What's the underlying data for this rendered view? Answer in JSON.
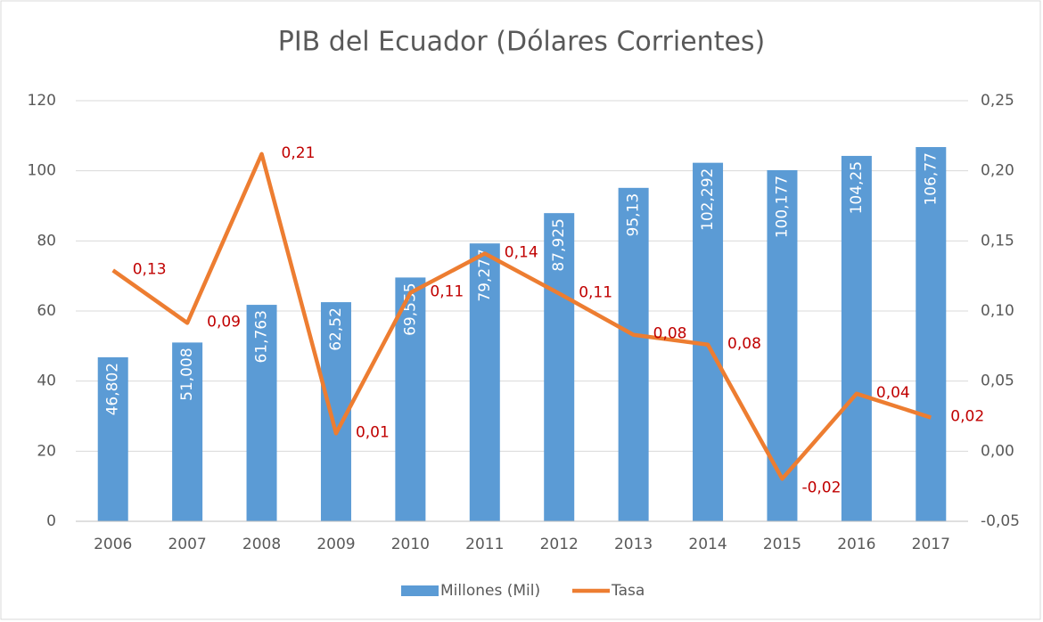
{
  "chart_data": {
    "type": "bar-line",
    "title": "PIB del Ecuador (Dólares Corrientes)",
    "categories": [
      "2006",
      "2007",
      "2008",
      "2009",
      "2010",
      "2011",
      "2012",
      "2013",
      "2014",
      "2015",
      "2016",
      "2017"
    ],
    "series": [
      {
        "name": "Millones (Mil)",
        "type": "bar",
        "color": "#5b9bd5",
        "values": [
          46.802,
          51.008,
          61.763,
          62.52,
          69.555,
          79.277,
          87.925,
          95.13,
          102.292,
          100.177,
          104.25,
          106.77
        ],
        "value_labels": [
          "46,802",
          "51,008",
          "61,763",
          "62,52",
          "69,555",
          "79,277",
          "87,925",
          "95,13",
          "102,292",
          "100,177",
          "104,25",
          "106,77"
        ]
      },
      {
        "name": "Tasa",
        "type": "line",
        "axis": "y2",
        "color": "#ed7d31",
        "values": [
          0.129,
          0.0915,
          0.212,
          0.0127,
          0.113,
          0.141,
          0.1125,
          0.083,
          0.076,
          -0.0197,
          0.041,
          0.024
        ],
        "value_labels": [
          "0,13",
          "0,09",
          "0,21",
          "0,01",
          "0,11",
          "0,14",
          "0,11",
          "0,08",
          "0,08",
          "-0,02",
          "0,04",
          "0,02"
        ]
      }
    ],
    "ylim": [
      0,
      120
    ],
    "yticks": [
      0,
      20,
      40,
      60,
      80,
      100,
      120
    ],
    "y2lim": [
      -0.05,
      0.25
    ],
    "y2ticks": [
      {
        "value": -0.05,
        "label": "-0,05"
      },
      {
        "value": 0,
        "label": "0,00"
      },
      {
        "value": 0.05,
        "label": "0,05"
      },
      {
        "value": 0.1,
        "label": "0,10"
      },
      {
        "value": 0.15,
        "label": "0,15"
      },
      {
        "value": 0.2,
        "label": "0,20"
      },
      {
        "value": 0.25,
        "label": "0,25"
      }
    ],
    "grid": true,
    "legend": "bottom"
  }
}
